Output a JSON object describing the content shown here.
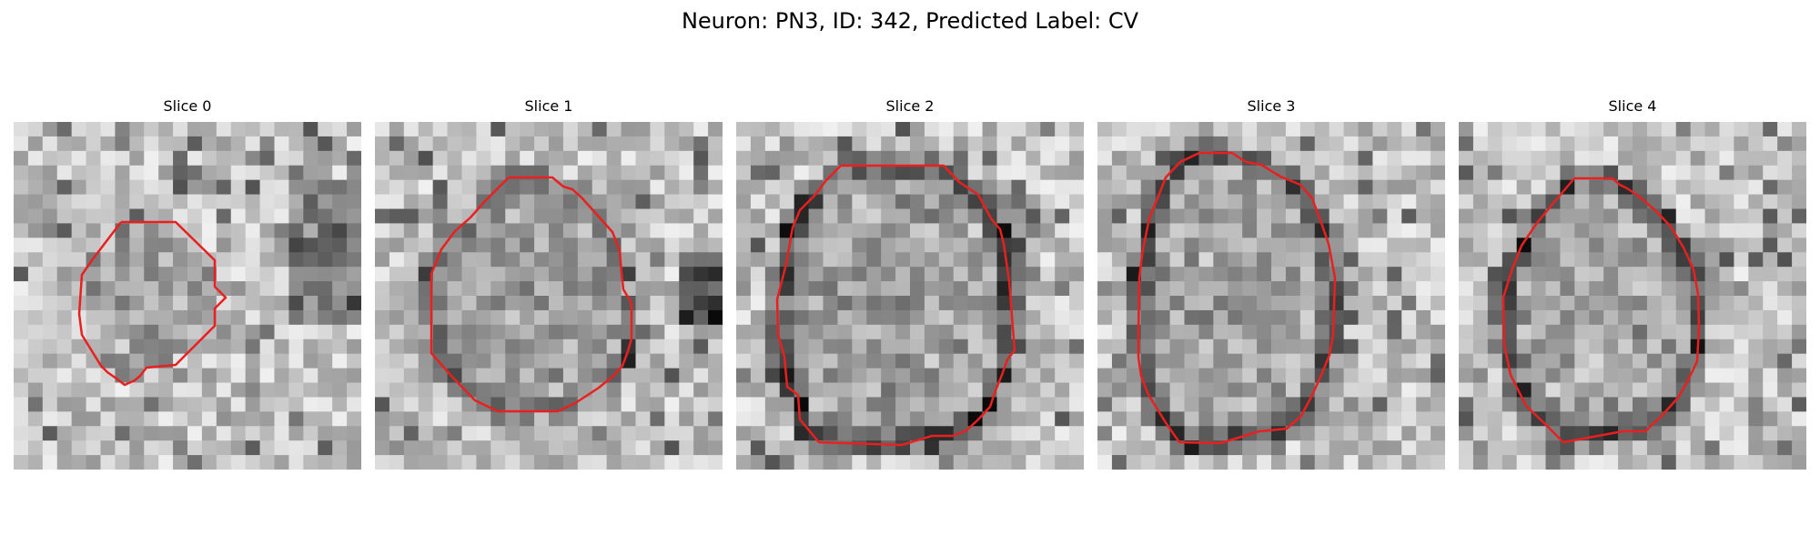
{
  "figure": {
    "title": "Neuron: PN3, ID: 342, Predicted Label: CV"
  },
  "panels": [
    {
      "title": "Slice 0",
      "contour_color": "#e8201f"
    },
    {
      "title": "Slice 1",
      "contour_color": "#e8201f"
    },
    {
      "title": "Slice 2",
      "contour_color": "#e8201f"
    },
    {
      "title": "Slice 3",
      "contour_color": "#e8201f"
    },
    {
      "title": "Slice 4",
      "contour_color": "#e8201f"
    }
  ]
}
